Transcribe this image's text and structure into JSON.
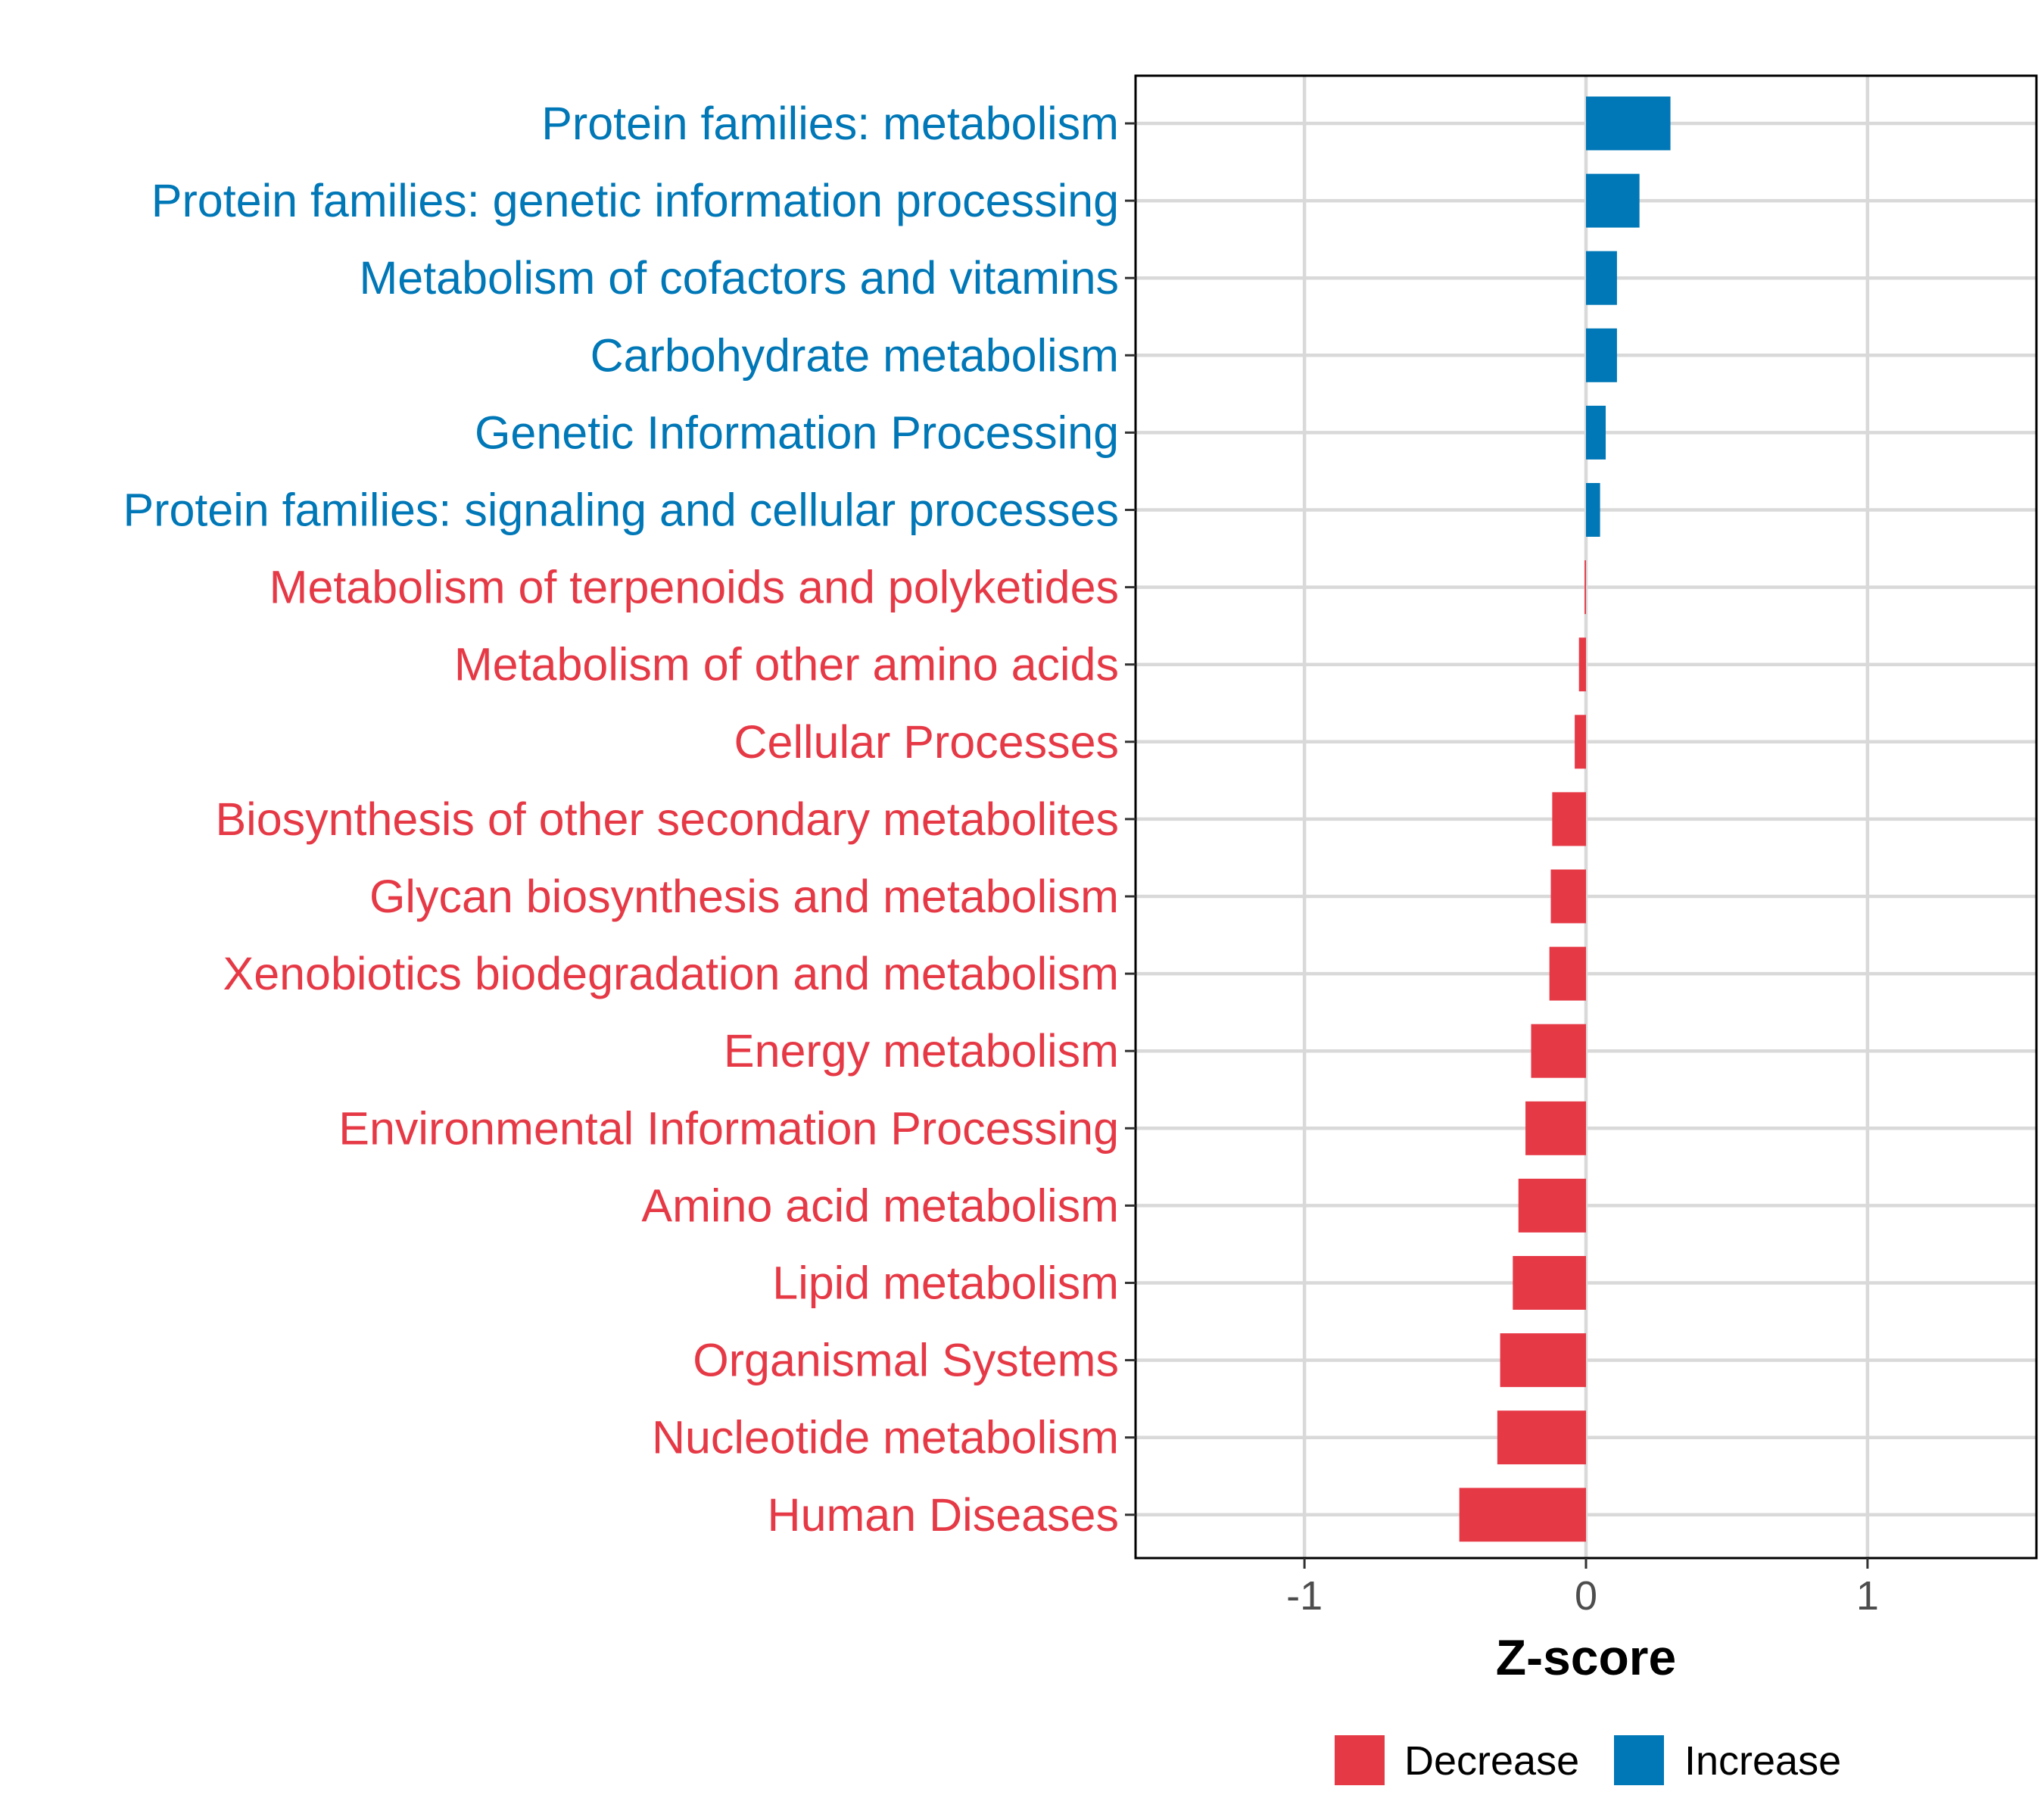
{
  "chart_data": {
    "type": "bar",
    "orientation": "horizontal",
    "title": "",
    "xlabel": "Z-score",
    "ylabel": "",
    "xlim": [
      -1.6,
      1.6
    ],
    "xticks": [
      -1,
      0,
      1
    ],
    "xtick_labels": [
      "-1",
      "0",
      "1"
    ],
    "grid": true,
    "legend_position": "bottom",
    "colors": {
      "Decrease": "#E63946",
      "Increase": "#0077B6"
    },
    "legend": [
      {
        "name": "Decrease",
        "color": "#E63946"
      },
      {
        "name": "Increase",
        "color": "#0077B6"
      }
    ],
    "categories": [
      "Protein families: metabolism",
      "Protein families: genetic information processing",
      "Metabolism of cofactors and vitamins",
      "Carbohydrate metabolism",
      "Genetic Information Processing",
      "Protein families: signaling and cellular processes",
      "Metabolism of terpenoids and polyketides",
      "Metabolism of other amino acids",
      "Cellular Processes",
      "Biosynthesis of other secondary metabolites",
      "Glycan biosynthesis and metabolism",
      "Xenobiotics biodegradation and metabolism",
      "Energy metabolism",
      "Environmental Information Processing",
      "Amino acid metabolism",
      "Lipid metabolism",
      "Organismal Systems",
      "Nucleotide metabolism",
      "Human Diseases"
    ],
    "values": [
      0.3,
      0.19,
      0.11,
      0.11,
      0.07,
      0.05,
      -0.005,
      -0.025,
      -0.04,
      -0.12,
      -0.125,
      -0.13,
      -0.195,
      -0.215,
      -0.24,
      -0.26,
      -0.305,
      -0.315,
      -0.45
    ],
    "groups": [
      "Increase",
      "Increase",
      "Increase",
      "Increase",
      "Increase",
      "Increase",
      "Decrease",
      "Decrease",
      "Decrease",
      "Decrease",
      "Decrease",
      "Decrease",
      "Decrease",
      "Decrease",
      "Decrease",
      "Decrease",
      "Decrease",
      "Decrease",
      "Decrease"
    ]
  }
}
